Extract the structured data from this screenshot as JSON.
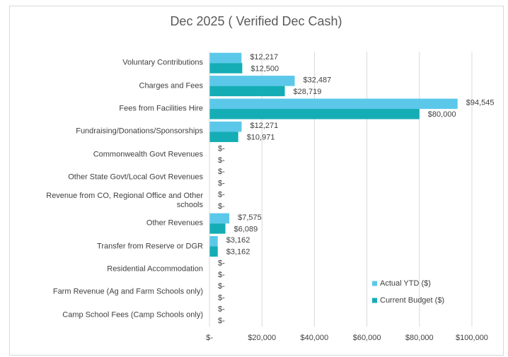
{
  "chart_data": {
    "type": "hbar",
    "title": "Dec 2025 ( Verified Dec Cash)",
    "categories": [
      "Voluntary Contributions",
      "Charges and Fees",
      "Fees from Facilities Hire",
      "Fundraising/Donations/Sponsorships",
      "Commonwealth Govt Revenues",
      "Other State Govt/Local Govt Revenues",
      "Revenue from CO, Regional Office and Other schools",
      "Other Revenues",
      "Transfer from Reserve or DGR",
      "Residential Accommodation",
      "Farm Revenue (Ag and Farm Schools only)",
      "Camp School Fees (Camp Schools only)"
    ],
    "series": [
      {
        "name": "Actual YTD ($)",
        "color": "#5bc8ea",
        "values": [
          12217,
          32487,
          94545,
          12271,
          0,
          0,
          0,
          7575,
          3162,
          0,
          0,
          0
        ],
        "value_labels": [
          "$12,217",
          "$32,487",
          "$94,545",
          "$12,271",
          "$-",
          "$-",
          "$-",
          "$7,575",
          "$3,162",
          "$-",
          "$-",
          "$-"
        ]
      },
      {
        "name": "Current Budget ($)",
        "color": "#14adb5",
        "values": [
          12500,
          28719,
          80000,
          10971,
          0,
          0,
          0,
          6089,
          3162,
          0,
          0,
          0
        ],
        "value_labels": [
          "$12,500",
          "$28,719",
          "$80,000",
          "$10,971",
          "$-",
          "$-",
          "$-",
          "$6,089",
          "$3,162",
          "$-",
          "$-",
          "$-"
        ]
      }
    ],
    "xlim": [
      0,
      100000
    ],
    "xticks": [
      {
        "value": 0,
        "label": "$-"
      },
      {
        "value": 20000,
        "label": "$20,000"
      },
      {
        "value": 40000,
        "label": "$40,000"
      },
      {
        "value": 60000,
        "label": "$60,000"
      },
      {
        "value": 80000,
        "label": "$80,000"
      },
      {
        "value": 100000,
        "label": "$100,000"
      }
    ],
    "grid": true,
    "legend": "bottom-right"
  }
}
